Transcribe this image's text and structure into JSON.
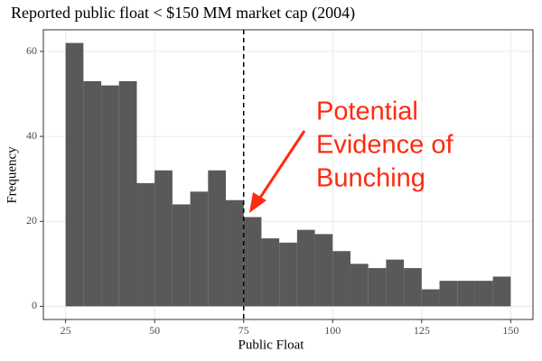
{
  "chart_data": {
    "type": "histogram",
    "title": "Reported public float < $150 MM market cap (2004)",
    "x_label": "Public Float",
    "y_label": "Frequency",
    "bins": [
      25,
      30,
      35,
      40,
      45,
      50,
      55,
      60,
      65,
      70,
      75,
      80,
      85,
      90,
      95,
      100,
      105,
      110,
      115,
      120,
      125,
      130,
      135,
      140,
      145,
      150
    ],
    "values": [
      62,
      53,
      52,
      53,
      29,
      32,
      24,
      27,
      32,
      25,
      21,
      16,
      15,
      18,
      17,
      13,
      10,
      9,
      11,
      9,
      4,
      6,
      6,
      6,
      7
    ],
    "color": "#595959",
    "xlim": [
      18.75,
      156.25
    ],
    "xticks": [
      25,
      50,
      75,
      100,
      125,
      150
    ],
    "ylim": [
      -3.1,
      65.1
    ],
    "yticks": [
      0,
      20,
      40,
      60
    ],
    "grid": true,
    "vline": 75,
    "annotation": {
      "lines": [
        "Potential",
        "Evidence of",
        "Bunching"
      ],
      "color": "#ff2a10"
    }
  }
}
